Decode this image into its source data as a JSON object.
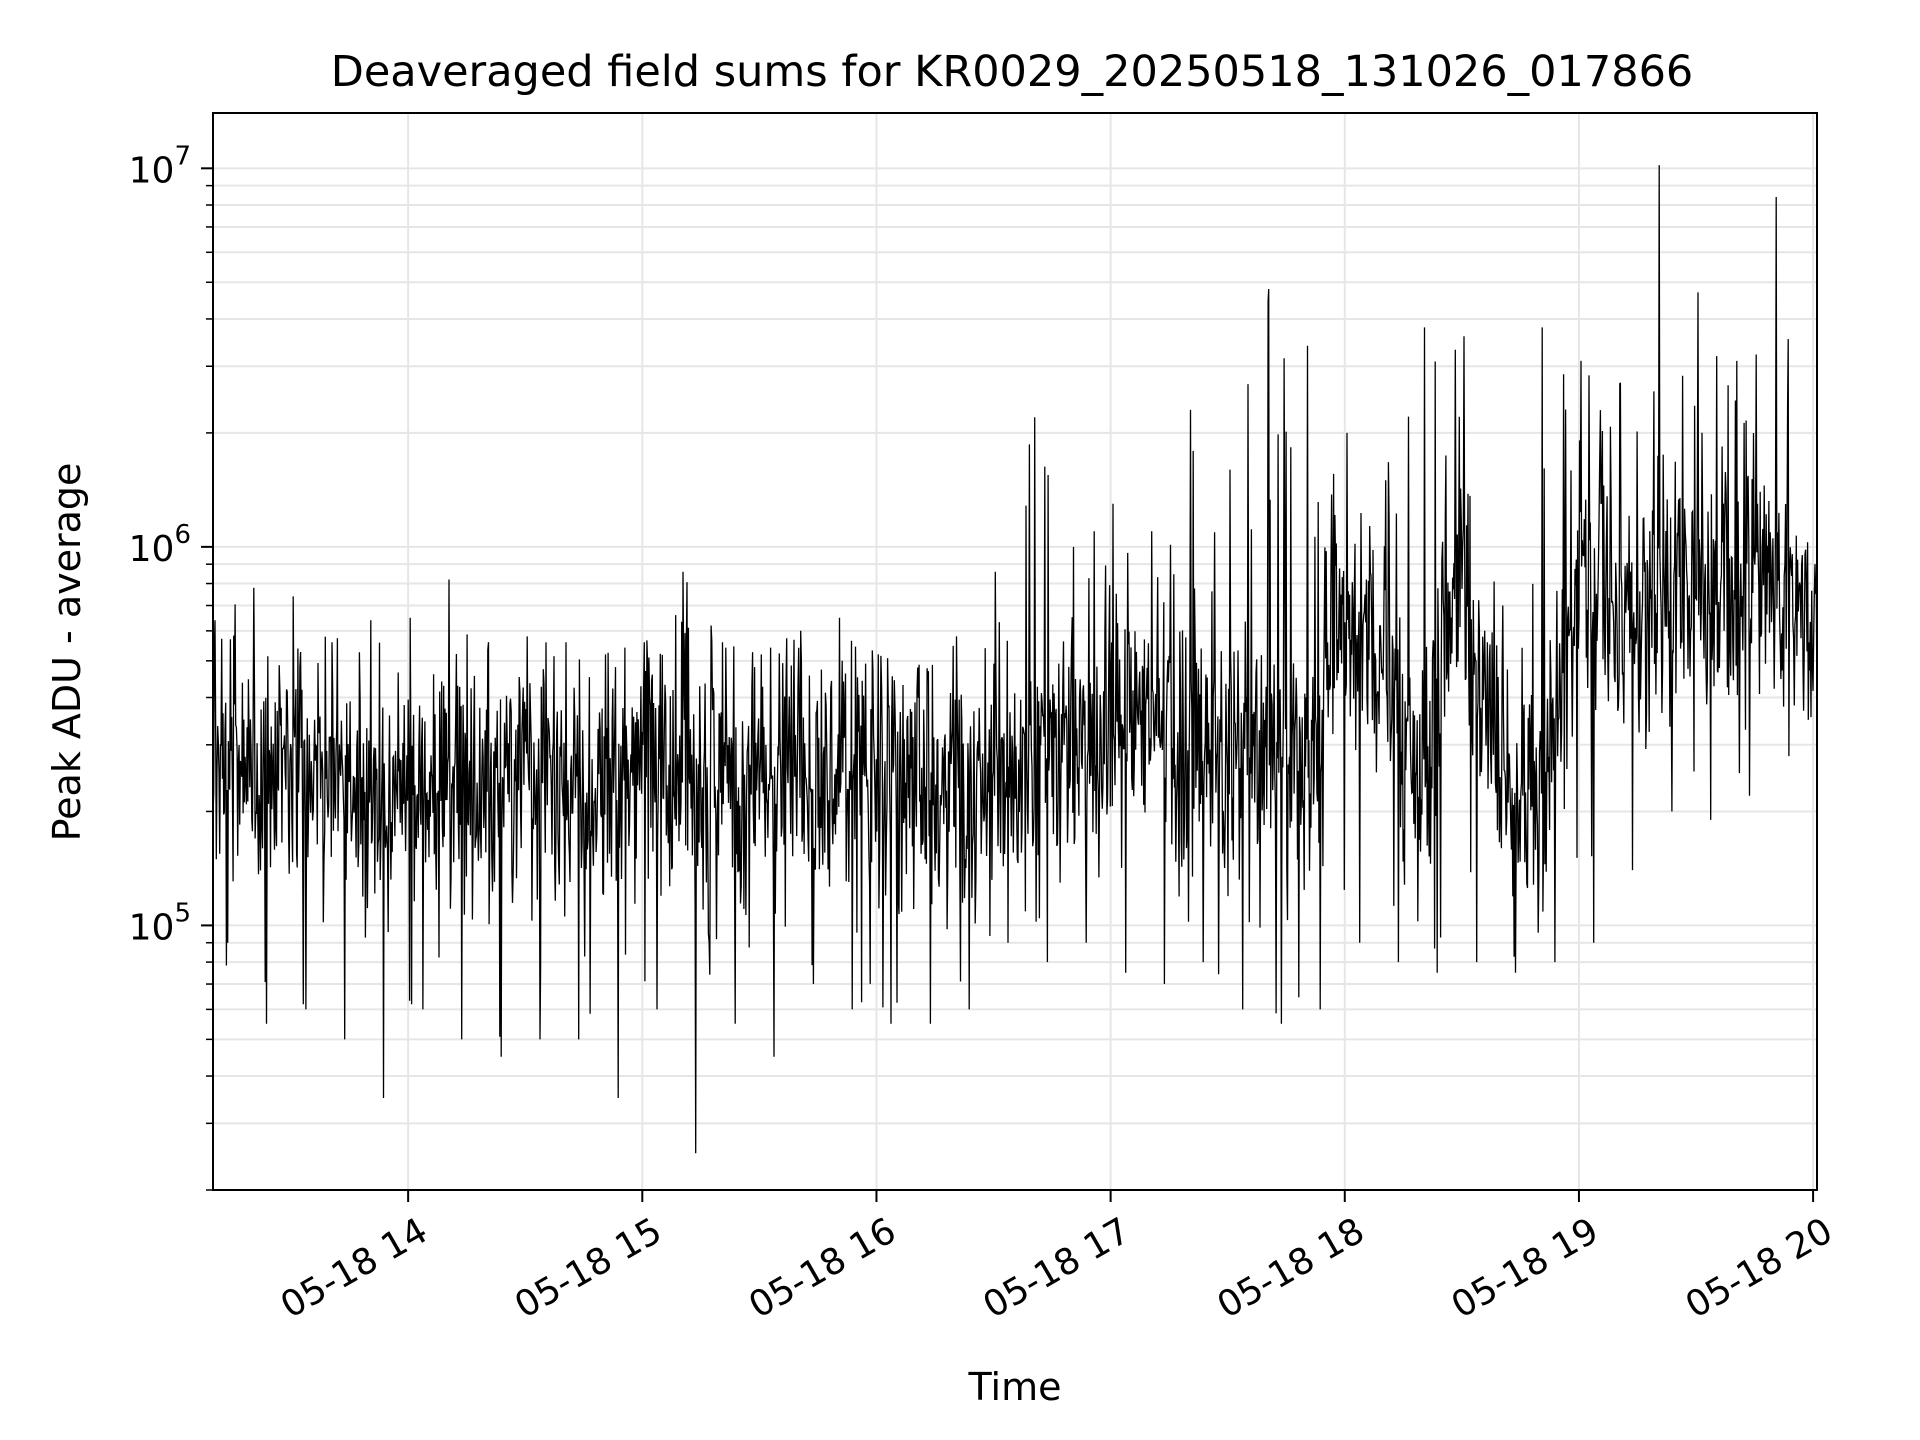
{
  "chart_data": {
    "type": "line",
    "title": "Deaveraged field sums for KR0029_20250518_131026_017866",
    "xlabel": "Time",
    "ylabel": "Peak ADU - average",
    "yscale": "log",
    "xlim": [
      "05-18 13:10",
      "05-18 20:01"
    ],
    "ylim": [
      20000,
      14000000
    ],
    "grid": true,
    "line_color": "#000000",
    "x_ticks": [
      "05-18 14",
      "05-18 15",
      "05-18 16",
      "05-18 17",
      "05-18 18",
      "05-18 19",
      "05-18 20"
    ],
    "y_ticks": [
      {
        "base": "10",
        "exp": "5",
        "value": 100000
      },
      {
        "base": "10",
        "exp": "6",
        "value": 1000000
      },
      {
        "base": "10",
        "exp": "7",
        "value": 10000000
      }
    ],
    "series": [
      {
        "x": [
          "05-18 13:10",
          "05-18 13:20",
          "05-18 13:30",
          "05-18 13:40",
          "05-18 13:50",
          "05-18 14:00",
          "05-18 14:10",
          "05-18 14:20",
          "05-18 14:30",
          "05-18 14:40",
          "05-18 14:50",
          "05-18 15:00",
          "05-18 15:10",
          "05-18 15:20",
          "05-18 15:30",
          "05-18 15:40",
          "05-18 15:50",
          "05-18 16:00",
          "05-18 16:10",
          "05-18 16:20",
          "05-18 16:30",
          "05-18 16:40",
          "05-18 16:50",
          "05-18 17:00",
          "05-18 17:10",
          "05-18 17:20",
          "05-18 17:30",
          "05-18 17:40",
          "05-18 17:50",
          "05-18 18:00",
          "05-18 18:10",
          "05-18 18:20",
          "05-18 18:30",
          "05-18 18:40",
          "05-18 18:50",
          "05-18 19:00",
          "05-18 19:10",
          "05-18 19:20",
          "05-18 19:30",
          "05-18 19:40",
          "05-18 19:50",
          "05-18 20:00"
        ],
        "values": [
          260000,
          270000,
          250000,
          270000,
          210000,
          240000,
          260000,
          250000,
          250000,
          240000,
          230000,
          260000,
          240000,
          230000,
          250000,
          240000,
          250000,
          240000,
          230000,
          240000,
          250000,
          260000,
          300000,
          330000,
          340000,
          310000,
          260000,
          280000,
          240000,
          600000,
          500000,
          230000,
          900000,
          250000,
          240000,
          900000,
          650000,
          700000,
          850000,
          850000,
          750000,
          650000
        ],
        "min": [
          90000,
          55000,
          60000,
          50000,
          35000,
          60000,
          50000,
          45000,
          50000,
          50000,
          35000,
          60000,
          25000,
          55000,
          45000,
          70000,
          60000,
          55000,
          55000,
          60000,
          90000,
          80000,
          90000,
          75000,
          70000,
          80000,
          60000,
          55000,
          60000,
          90000,
          80000,
          75000,
          80000,
          75000,
          80000,
          90000,
          140000,
          200000,
          190000,
          220000,
          280000,
          360000
        ],
        "max": [
          640000,
          780000,
          740000,
          560000,
          640000,
          650000,
          820000,
          560000,
          580000,
          560000,
          520000,
          560000,
          860000,
          560000,
          520000,
          600000,
          650000,
          520000,
          480000,
          580000,
          860000,
          2200000,
          1000000,
          1300000,
          1100000,
          2300000,
          1600000,
          4800000,
          3400000,
          2000000,
          1500000,
          3800000,
          3600000,
          700000,
          3800000,
          3100000,
          2700000,
          10200000,
          4700000,
          3100000,
          8400000,
          900000
        ]
      }
    ]
  }
}
